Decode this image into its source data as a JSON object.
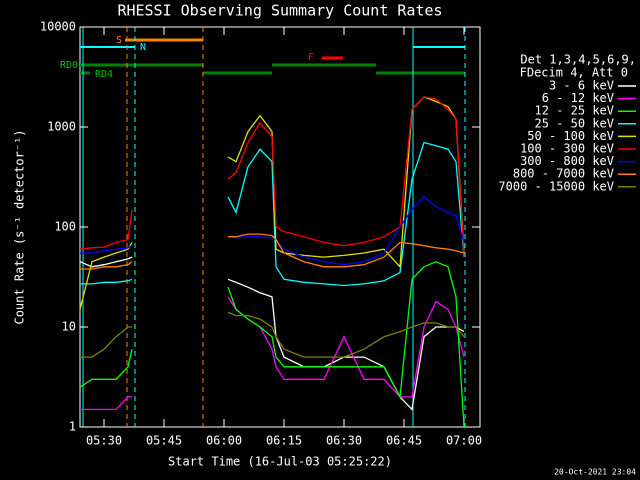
{
  "chart_data": {
    "type": "line",
    "title": "RHESSI Observing Summary Count Rates",
    "x_label": "Start Time (16-Jul-03 05:25:22)",
    "y_label": "Count Rate (s⁻¹ detector⁻¹)",
    "legend_header": [
      "Det 1,3,4,5,6,9,",
      "FDecim 4, Att 0"
    ],
    "annotations": [
      "S",
      "N",
      "F",
      "RD0",
      "RD4"
    ],
    "footer": "20-Oct-2021 23:04",
    "log_y": true,
    "xlim": [
      "05:24",
      "07:04"
    ],
    "xticks": [
      "05:30",
      "05:45",
      "06:00",
      "06:15",
      "06:30",
      "06:45",
      "07:00"
    ],
    "ylim": [
      1,
      10000
    ],
    "yticks": [
      1,
      10,
      100,
      1000,
      10000
    ],
    "x": [
      "05:24",
      "05:27",
      "05:30",
      "05:33",
      "05:36",
      "05:37",
      "05:50",
      "06:01",
      "06:03",
      "06:06",
      "06:09",
      "06:12",
      "06:13",
      "06:15",
      "06:20",
      "06:25",
      "06:30",
      "06:35",
      "06:40",
      "06:44",
      "06:47",
      "06:50",
      "06:53",
      "06:56",
      "06:58",
      "07:00"
    ],
    "series": [
      {
        "name": "3 - 6 keV",
        "color": "#ffffff",
        "values": [
          45,
          40,
          42,
          45,
          48,
          50,
          null,
          30,
          28,
          25,
          22,
          20,
          8,
          5,
          4,
          4,
          5,
          5,
          4,
          2,
          1.5,
          8,
          10,
          10,
          10,
          9
        ]
      },
      {
        "name": "6 - 12 keV",
        "color": "#ff00ff",
        "values": [
          1.5,
          1.5,
          1.5,
          1.5,
          2,
          2,
          null,
          20,
          15,
          12,
          10,
          6,
          4,
          3,
          3,
          3,
          8,
          3,
          3,
          2,
          2,
          10,
          18,
          15,
          10,
          5
        ]
      },
      {
        "name": "12 - 25 keV",
        "color": "#00ff00",
        "values": [
          2.5,
          3,
          3,
          3,
          4,
          6,
          null,
          25,
          15,
          12,
          10,
          8,
          5,
          4,
          4,
          4,
          4,
          4,
          4,
          2,
          30,
          40,
          45,
          40,
          20,
          1
        ]
      },
      {
        "name": "25 - 50 keV",
        "color": "#00ffff",
        "values": [
          27,
          27,
          28,
          28,
          29,
          30,
          null,
          200,
          140,
          400,
          600,
          450,
          40,
          30,
          28,
          27,
          26,
          27,
          29,
          35,
          300,
          700,
          650,
          600,
          450,
          50
        ]
      },
      {
        "name": "50 - 100 keV",
        "color": "#e0e000",
        "values": [
          15,
          45,
          50,
          55,
          60,
          70,
          null,
          500,
          450,
          900,
          1300,
          900,
          60,
          55,
          52,
          50,
          52,
          55,
          60,
          40,
          1500,
          2000,
          1800,
          1600,
          1200,
          55
        ]
      },
      {
        "name": "100 - 300 keV",
        "color": "#ff0000",
        "values": [
          60,
          62,
          63,
          70,
          75,
          150,
          null,
          300,
          350,
          700,
          1100,
          800,
          100,
          90,
          80,
          70,
          65,
          70,
          80,
          100,
          1500,
          2000,
          1900,
          1500,
          1200,
          50
        ]
      },
      {
        "name": "300 - 800 keV",
        "color": "#0000ff",
        "values": [
          55,
          55,
          58,
          60,
          62,
          65,
          null,
          80,
          78,
          80,
          80,
          78,
          75,
          60,
          50,
          45,
          42,
          45,
          55,
          100,
          150,
          200,
          160,
          140,
          130,
          70
        ]
      },
      {
        "name": "800 - 7000 keV",
        "color": "#ff8000",
        "values": [
          38,
          38,
          40,
          40,
          42,
          45,
          null,
          80,
          80,
          85,
          85,
          82,
          75,
          55,
          45,
          40,
          40,
          42,
          50,
          70,
          68,
          65,
          62,
          60,
          58,
          55
        ]
      },
      {
        "name": "7000 - 15000 keV",
        "color": "#808000",
        "values": [
          5,
          5,
          6,
          8,
          10,
          10,
          null,
          14,
          13,
          13,
          12,
          10,
          8,
          6,
          5,
          5,
          5,
          6,
          8,
          9,
          10,
          11,
          11,
          10,
          10,
          8
        ]
      }
    ]
  }
}
